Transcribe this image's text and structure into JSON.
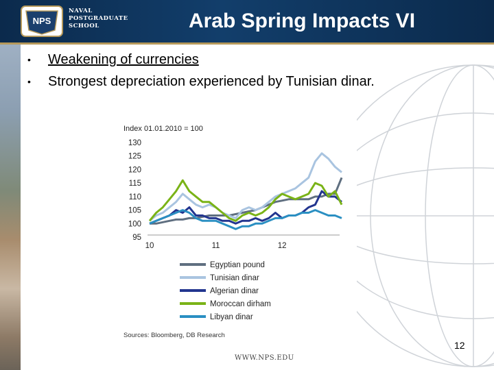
{
  "header": {
    "logo_seal": "NPS",
    "logo_lines": [
      "NAVAL",
      "POSTGRADUATE",
      "SCHOOL"
    ],
    "title": "Arab Spring Impacts VI"
  },
  "bullets": [
    {
      "text": "Weakening of currencies",
      "underline": true
    },
    {
      "text": "Strongest depreciation experienced by Tunisian dinar.",
      "underline": false
    }
  ],
  "bullet_glyph": "•",
  "footer": {
    "url": "WWW.NPS.EDU",
    "page": "12"
  },
  "chart_data": {
    "type": "line",
    "title": "Index 01.01.2010 = 100",
    "source": "Sources: Bloomberg, DB Research",
    "x_ticks": [
      "10",
      "11",
      "12"
    ],
    "y_ticks": [
      130,
      125,
      120,
      115,
      110,
      105,
      100,
      95
    ],
    "ylim": [
      95,
      130
    ],
    "x": [
      2010.0,
      2010.1,
      2010.2,
      2010.3,
      2010.4,
      2010.5,
      2010.6,
      2010.7,
      2010.8,
      2010.9,
      2011.0,
      2011.1,
      2011.2,
      2011.3,
      2011.4,
      2011.5,
      2011.6,
      2011.7,
      2011.8,
      2011.9,
      2012.0,
      2012.1,
      2012.2,
      2012.3,
      2012.4,
      2012.5,
      2012.6,
      2012.7,
      2012.8,
      2012.9
    ],
    "xlim": [
      2010.0,
      2012.9
    ],
    "grid": false,
    "legend_position": "bottom",
    "series": [
      {
        "name": "Egyptian pound",
        "color": "#5f6f80",
        "values": [
          100,
          100,
          100.5,
          101,
          101.5,
          101.5,
          102,
          102,
          102.5,
          103,
          103,
          103,
          103,
          103.5,
          104,
          104.5,
          105,
          106,
          107,
          108,
          108.5,
          109,
          109,
          109,
          109,
          110,
          110,
          111,
          111,
          117
        ]
      },
      {
        "name": "Tunisian dinar",
        "color": "#a9c4e0",
        "values": [
          101,
          103,
          104,
          106,
          108,
          111,
          109,
          107,
          106,
          107,
          106,
          104,
          103,
          102,
          105,
          106,
          105,
          106,
          108,
          110,
          111,
          112,
          113,
          115,
          117,
          123,
          126,
          124,
          121,
          119
        ]
      },
      {
        "name": "Algerian dinar",
        "color": "#22358f",
        "values": [
          100,
          101,
          102,
          103,
          105,
          104,
          106,
          103,
          103,
          102,
          102,
          101,
          101,
          100,
          101,
          101,
          102,
          101,
          102,
          104,
          102,
          103,
          103,
          104,
          106,
          107,
          112,
          110,
          110,
          108
        ]
      },
      {
        "name": "Moroccan dirham",
        "color": "#7ab317",
        "values": [
          101,
          104,
          106,
          109,
          112,
          116,
          112,
          110,
          108,
          108,
          106,
          104,
          102,
          101,
          103,
          104,
          103,
          104,
          106,
          109,
          111,
          110,
          109,
          110,
          111,
          115,
          114,
          110,
          112,
          107
        ]
      },
      {
        "name": "Libyan dinar",
        "color": "#2a8fc2",
        "values": [
          100,
          101,
          102,
          103,
          104,
          105,
          104,
          102,
          101,
          101,
          101,
          100,
          99,
          98,
          99,
          99,
          100,
          100,
          101,
          102,
          102,
          103,
          103,
          104,
          104,
          105,
          104,
          103,
          103,
          102
        ]
      }
    ]
  }
}
